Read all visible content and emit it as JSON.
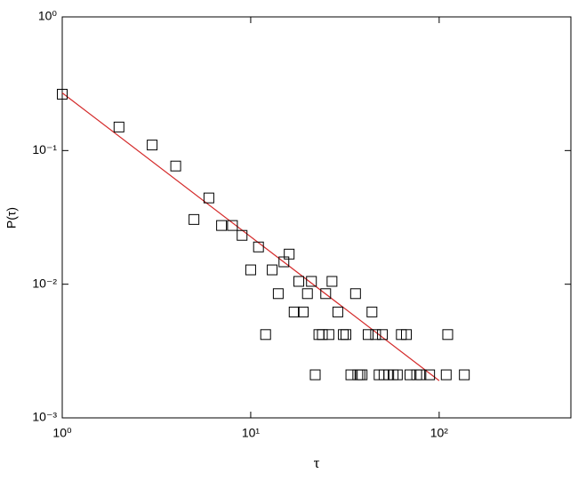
{
  "chart_data": {
    "type": "scatter",
    "xlabel": "τ",
    "ylabel": "P(τ)",
    "xscale": "log",
    "yscale": "log",
    "xlim": [
      1,
      500
    ],
    "ylim": [
      0.001,
      1
    ],
    "xticks": [
      {
        "value": 1,
        "label": "10⁰"
      },
      {
        "value": 10,
        "label": "10¹"
      },
      {
        "value": 100,
        "label": "10²"
      }
    ],
    "yticks": [
      {
        "value": 0.001,
        "label": "10⁻³"
      },
      {
        "value": 0.01,
        "label": "10⁻²"
      },
      {
        "value": 0.1,
        "label": "10⁻¹"
      },
      {
        "value": 1,
        "label": "10⁰"
      }
    ],
    "color": "#000000",
    "x": [
      1,
      2,
      3,
      4,
      5,
      6,
      7,
      8,
      9,
      10,
      11,
      12,
      13,
      14,
      15,
      16,
      17,
      18,
      19,
      20,
      21,
      22,
      23,
      24,
      25,
      26,
      27,
      29,
      31,
      32,
      34,
      36,
      37,
      38,
      39,
      42,
      44,
      46,
      48,
      50,
      51,
      54,
      57,
      60,
      63,
      67,
      70,
      76,
      80,
      89,
      109,
      111,
      136
    ],
    "values": [
      0.264,
      0.15,
      0.11,
      0.0766,
      0.0305,
      0.0442,
      0.0275,
      0.0275,
      0.0232,
      0.0128,
      0.019,
      0.0042,
      0.0128,
      0.0085,
      0.0147,
      0.0168,
      0.0062,
      0.0105,
      0.0062,
      0.0085,
      0.0105,
      0.0021,
      0.0042,
      0.0042,
      0.0085,
      0.0042,
      0.0105,
      0.0062,
      0.0042,
      0.0042,
      0.0021,
      0.0085,
      0.0021,
      0.0021,
      0.0021,
      0.0042,
      0.0062,
      0.0042,
      0.0021,
      0.0042,
      0.0021,
      0.0021,
      0.0021,
      0.0021,
      0.0042,
      0.0042,
      0.0021,
      0.0021,
      0.0021,
      0.0021,
      0.0021,
      0.0042,
      0.0021
    ],
    "fit": {
      "x": [
        1,
        100
      ],
      "values": [
        0.27,
        0.0019
      ],
      "color": "#d42a2a"
    }
  }
}
